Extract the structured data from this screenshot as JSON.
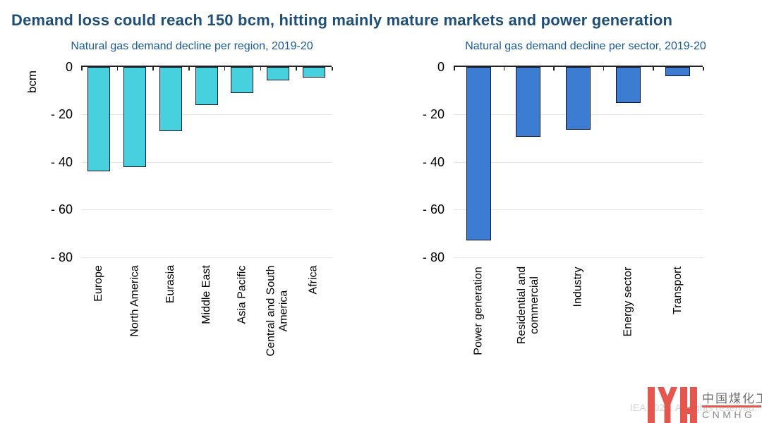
{
  "page": {
    "title": "Demand loss could reach 150 bcm, hitting mainly mature markets and power generation"
  },
  "chart_data": [
    {
      "type": "bar",
      "title": "Natural gas demand decline per region, 2019-20",
      "ylabel": "bcm",
      "categories": [
        "Europe",
        "North America",
        "Eurasia",
        "Middle East",
        "Asia Pacific",
        "Central and South\nAmerica",
        "Africa"
      ],
      "values": [
        -44,
        -42,
        -27,
        -16,
        -11,
        -5.5,
        -4.5
      ],
      "ylim": [
        -80,
        0
      ],
      "yticks": [
        0,
        -20,
        -40,
        -60,
        -80
      ],
      "ytick_labels": [
        "0",
        "- 20",
        "- 40",
        "- 60",
        "- 80"
      ],
      "bar_color": "#47D1DF",
      "bar_outline_color": "#141428",
      "grid": true,
      "legend": false
    },
    {
      "type": "bar",
      "title": "Natural gas demand decline per sector, 2019-20",
      "ylabel": "bcm",
      "categories": [
        "Power generation",
        "Residential and\ncommercial",
        "Industry",
        "Energy sector",
        "Transport"
      ],
      "values": [
        -73,
        -29.5,
        -26.5,
        -15,
        -4
      ],
      "ylim": [
        -80,
        0
      ],
      "yticks": [
        0,
        -20,
        -40,
        -60,
        -80
      ],
      "ytick_labels": [
        "0",
        "- 20",
        "- 40",
        "- 60",
        "- 80"
      ],
      "bar_color": "#3C7CD2",
      "bar_outline_color": "#141428",
      "grid": true,
      "legend": false
    }
  ],
  "watermark": {
    "copyright": "IEA 2020. All rights reserved.",
    "logo_cn": "中国煤化工",
    "logo_en": "CNMHG",
    "logo_color": "#E4564E"
  },
  "colors": {
    "title": "#1F4E79",
    "subtitle": "#1B5A9B",
    "gridline": "#e5e5e5",
    "axis": "#222222"
  }
}
